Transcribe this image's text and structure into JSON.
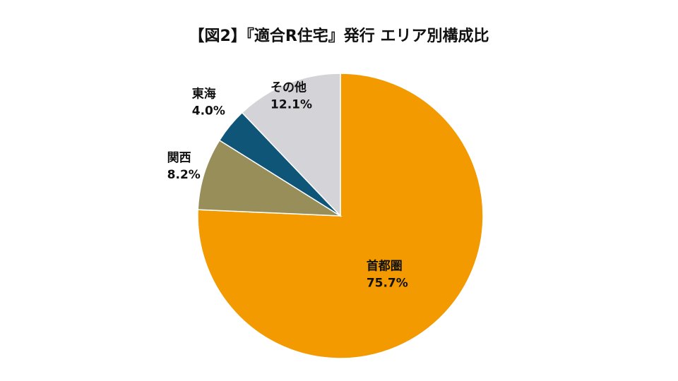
{
  "chart_data": {
    "type": "pie",
    "title": "【図2】『適合R住宅』発行 エリア別構成比",
    "slices": [
      {
        "label": "首都圏",
        "value": 75.7,
        "value_label": "75.7%",
        "color": "#F29A00"
      },
      {
        "label": "関西",
        "value": 8.2,
        "value_label": "8.2%",
        "color": "#978E5A"
      },
      {
        "label": "東海",
        "value": 4.0,
        "value_label": "4.0%",
        "color": "#0E5578"
      },
      {
        "label": "その他",
        "value": 12.1,
        "value_label": "12.1%",
        "color": "#D3D3D8"
      }
    ],
    "start_angle_deg": 0,
    "direction": "clockwise",
    "legend": "none"
  }
}
